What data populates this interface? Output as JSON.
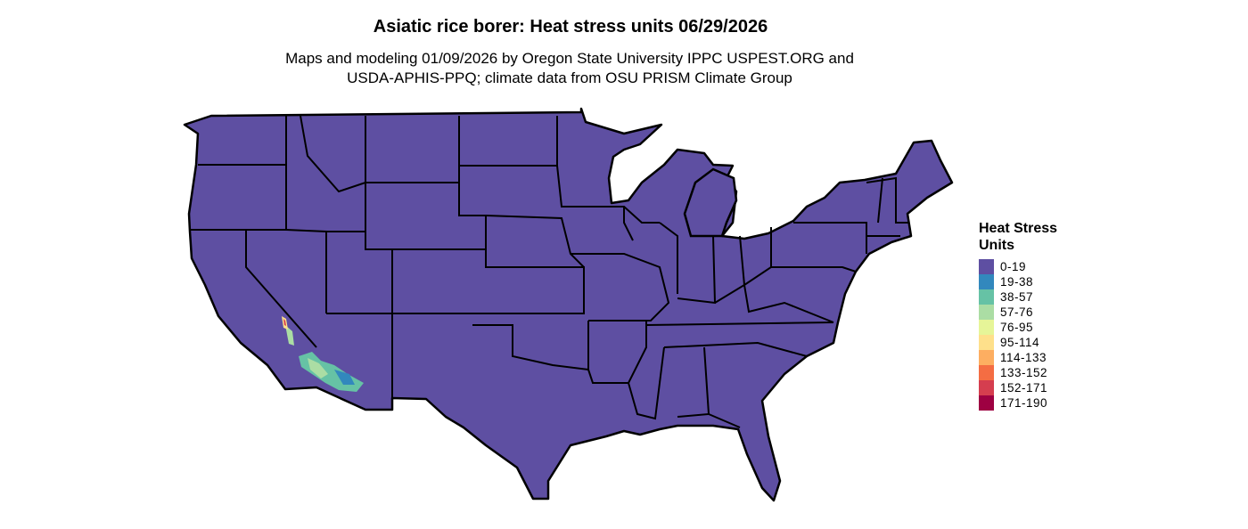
{
  "title": "Asiatic rice borer: Heat stress units 06/29/2026",
  "subtitle_line1": "Maps and modeling 01/09/2026 by Oregon State University IPPC USPEST.ORG and",
  "subtitle_line2": "USDA-APHIS-PPQ; climate data from OSU PRISM Climate Group",
  "map": {
    "region": "Contiguous United States",
    "base_color": "#5E4FA2",
    "border_color": "#000000",
    "hot_region": "southeastern California and southwestern Arizona"
  },
  "legend": {
    "title": "Heat Stress Units",
    "items": [
      {
        "label": "0-19",
        "color": "#5E4FA2"
      },
      {
        "label": "19-38",
        "color": "#3288BD"
      },
      {
        "label": "38-57",
        "color": "#66C2A5"
      },
      {
        "label": "57-76",
        "color": "#ABDDA4"
      },
      {
        "label": "76-95",
        "color": "#E6F598"
      },
      {
        "label": "95-114",
        "color": "#FEE08B"
      },
      {
        "label": "114-133",
        "color": "#FDAE61"
      },
      {
        "label": "133-152",
        "color": "#F46D43"
      },
      {
        "label": "152-171",
        "color": "#D53E4F"
      },
      {
        "label": "171-190",
        "color": "#9E0142"
      }
    ]
  }
}
